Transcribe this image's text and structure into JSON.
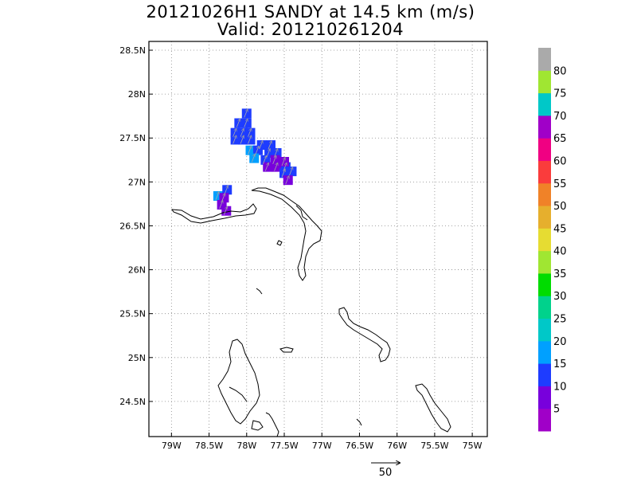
{
  "title": {
    "line1": "20121026H1 SANDY at 14.5 km (m/s)",
    "line2": "Valid: 201210261204"
  },
  "map": {
    "lon_range": [
      -79.3,
      -74.8
    ],
    "lat_range": [
      24.1,
      28.6
    ],
    "lon_ticks": [
      {
        "value": -79.0,
        "label": "79W"
      },
      {
        "value": -78.5,
        "label": "78.5W"
      },
      {
        "value": -78.0,
        "label": "78W"
      },
      {
        "value": -77.5,
        "label": "77.5W"
      },
      {
        "value": -77.0,
        "label": "77W"
      },
      {
        "value": -76.5,
        "label": "76.5W"
      },
      {
        "value": -76.0,
        "label": "76W"
      },
      {
        "value": -75.5,
        "label": "75.5W"
      },
      {
        "value": -75.0,
        "label": "75W"
      }
    ],
    "lat_ticks": [
      {
        "value": 28.5,
        "label": "28.5N"
      },
      {
        "value": 28.0,
        "label": "28N"
      },
      {
        "value": 27.5,
        "label": "27.5N"
      },
      {
        "value": 27.0,
        "label": "27N"
      },
      {
        "value": 26.5,
        "label": "26.5N"
      },
      {
        "value": 26.0,
        "label": "26N"
      },
      {
        "value": 25.5,
        "label": "25.5N"
      },
      {
        "value": 25.0,
        "label": "25N"
      },
      {
        "value": 24.5,
        "label": "24.5N"
      }
    ],
    "grid": "dotted"
  },
  "colorbar": {
    "labels": [
      "5",
      "10",
      "15",
      "20",
      "25",
      "30",
      "35",
      "40",
      "45",
      "50",
      "55",
      "60",
      "65",
      "70",
      "75",
      "80"
    ],
    "colors": [
      "#a000c8",
      "#7800dc",
      "#1e3cff",
      "#00a0ff",
      "#00c8c8",
      "#00d28c",
      "#00dc00",
      "#a0e632",
      "#e6dc32",
      "#e6af2d",
      "#f08228",
      "#fa3c3c",
      "#f00082",
      "#a000c8",
      "#00c8c8",
      "#a0e632",
      "#aaaaaa"
    ]
  },
  "wind_cells": [
    {
      "lon": -78.0,
      "lat": 27.78,
      "speed": 12
    },
    {
      "lon": -78.1,
      "lat": 27.67,
      "speed": 12
    },
    {
      "lon": -78.0,
      "lat": 27.67,
      "speed": 12
    },
    {
      "lon": -78.15,
      "lat": 27.56,
      "speed": 12
    },
    {
      "lon": -78.05,
      "lat": 27.56,
      "speed": 12
    },
    {
      "lon": -77.95,
      "lat": 27.56,
      "speed": 12
    },
    {
      "lon": -78.15,
      "lat": 27.48,
      "speed": 12
    },
    {
      "lon": -78.05,
      "lat": 27.48,
      "speed": 12
    },
    {
      "lon": -77.95,
      "lat": 27.48,
      "speed": 12
    },
    {
      "lon": -77.8,
      "lat": 27.42,
      "speed": 12
    },
    {
      "lon": -77.68,
      "lat": 27.42,
      "speed": 12
    },
    {
      "lon": -77.95,
      "lat": 27.36,
      "speed": 17
    },
    {
      "lon": -77.85,
      "lat": 27.36,
      "speed": 12
    },
    {
      "lon": -77.7,
      "lat": 27.33,
      "speed": 12
    },
    {
      "lon": -77.6,
      "lat": 27.33,
      "speed": 12
    },
    {
      "lon": -77.9,
      "lat": 27.27,
      "speed": 17
    },
    {
      "lon": -77.75,
      "lat": 27.25,
      "speed": 12
    },
    {
      "lon": -77.62,
      "lat": 27.25,
      "speed": 8
    },
    {
      "lon": -77.72,
      "lat": 27.17,
      "speed": 8
    },
    {
      "lon": -77.6,
      "lat": 27.17,
      "speed": 8
    },
    {
      "lon": -77.48,
      "lat": 27.17,
      "speed": 12
    },
    {
      "lon": -77.5,
      "lat": 27.23,
      "speed": 8
    },
    {
      "lon": -77.4,
      "lat": 27.12,
      "speed": 12
    },
    {
      "lon": -77.5,
      "lat": 27.1,
      "speed": 12
    },
    {
      "lon": -77.45,
      "lat": 27.02,
      "speed": 8
    },
    {
      "lon": -78.38,
      "lat": 26.84,
      "speed": 17
    },
    {
      "lon": -78.26,
      "lat": 26.91,
      "speed": 12
    },
    {
      "lon": -78.3,
      "lat": 26.82,
      "speed": 8
    },
    {
      "lon": -78.33,
      "lat": 26.74,
      "speed": 8
    },
    {
      "lon": -78.27,
      "lat": 26.67,
      "speed": 8
    }
  ],
  "reference_vector": {
    "label": "50"
  }
}
